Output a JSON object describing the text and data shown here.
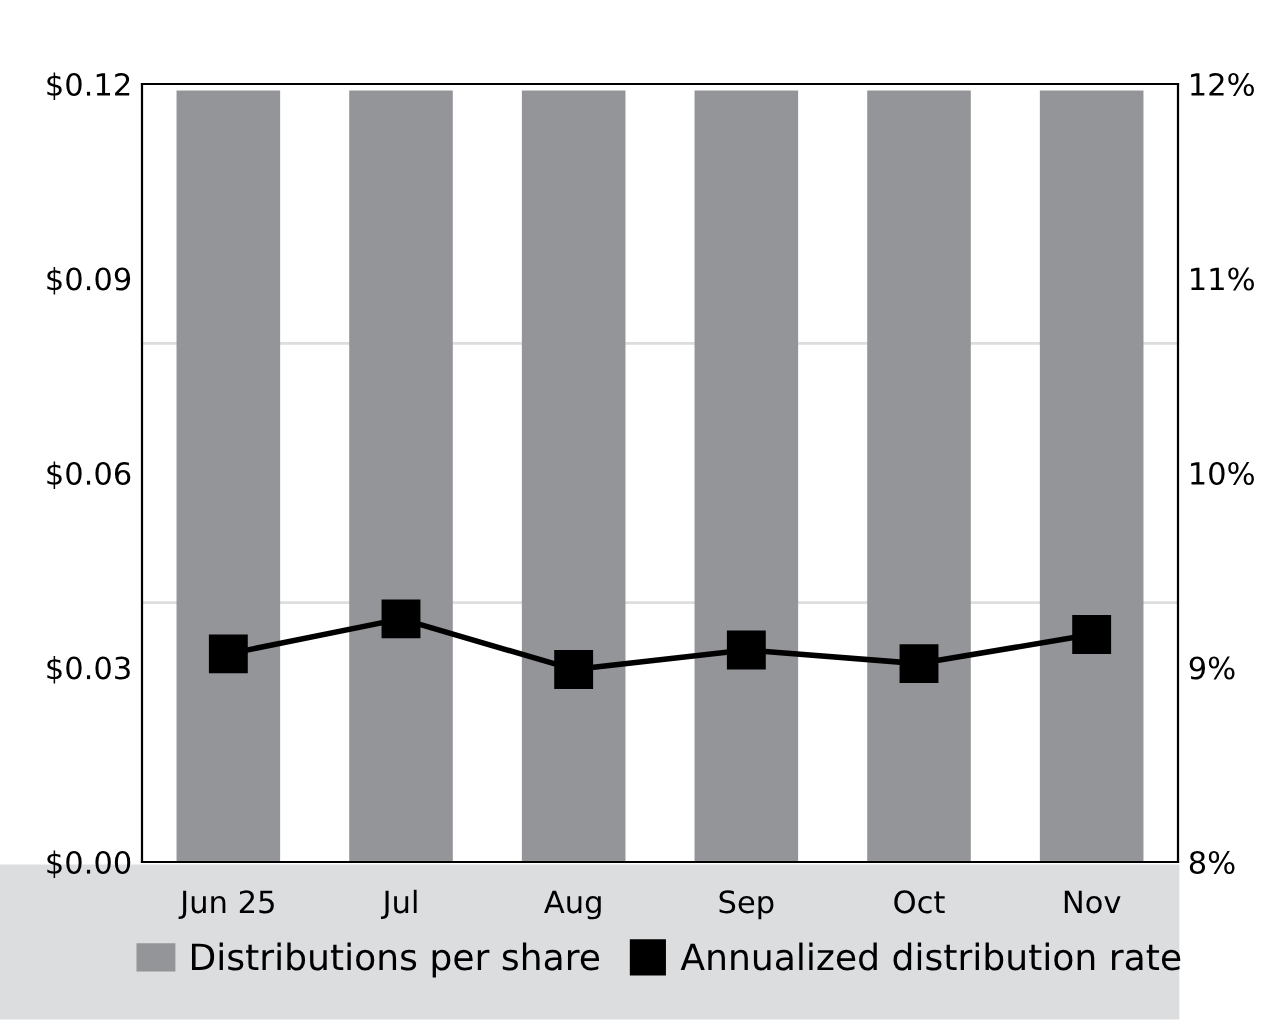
{
  "chart_data": {
    "type": "bar",
    "categories": [
      "Jun 25",
      "Jul",
      "Aug",
      "Sep",
      "Oct",
      "Nov"
    ],
    "series": [
      {
        "name": "Distributions per share",
        "color": "#939598",
        "values": [
          0.119,
          0.119,
          0.119,
          0.119,
          0.119,
          0.119
        ]
      },
      {
        "name": "Annualized distribution rate",
        "type": "line",
        "axis": "y2",
        "color": "#000000",
        "marker": "square",
        "values": [
          9.07,
          9.25,
          8.99,
          9.09,
          9.02,
          9.17
        ]
      }
    ],
    "ylim": [
      0,
      0.12
    ],
    "yticks": [
      {
        "value": 0,
        "label": "$0.00"
      },
      {
        "value": 0.03,
        "label": "$0.03"
      },
      {
        "value": 0.06,
        "label": "$0.06"
      },
      {
        "value": 0.09,
        "label": "$0.09"
      },
      {
        "value": 0.12,
        "label": "$0.12"
      }
    ],
    "y2lim": [
      8,
      12
    ],
    "y2ticks": [
      {
        "value": 8,
        "label": "8%"
      },
      {
        "value": 9,
        "label": "9%"
      },
      {
        "value": 10,
        "label": "10%"
      },
      {
        "value": 11,
        "label": "11%"
      },
      {
        "value": 12,
        "label": "12%"
      }
    ],
    "ref_lines": [
      {
        "axis": "y",
        "value": 0.04,
        "color": "#dddddd"
      },
      {
        "axis": "y",
        "value": 0.08,
        "color": "#dddddd"
      }
    ],
    "legend": "bottom"
  }
}
